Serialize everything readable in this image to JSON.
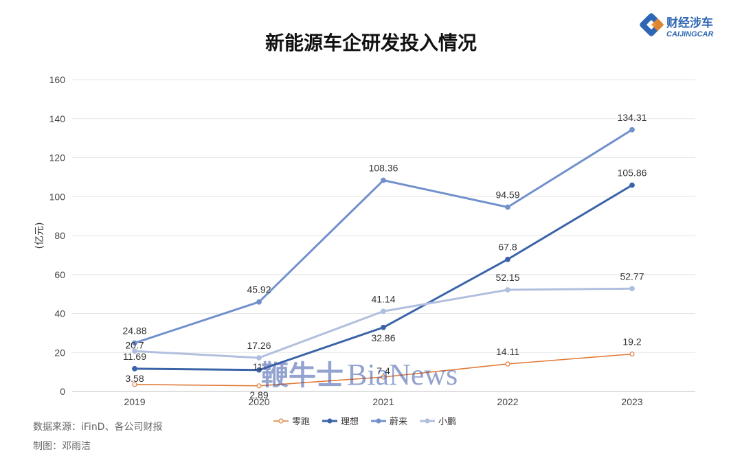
{
  "logo": {
    "name_cn": "财经涉车",
    "name_en": "CAIJINGCAR"
  },
  "footer": {
    "source": "数据来源：iFinD、各公司财报",
    "author": "制图：邓雨洁"
  },
  "watermark": {
    "cn": "鞭牛士",
    "en": "BiaNews"
  },
  "chart_data": {
    "type": "line",
    "title": "新能源车企研发投入情况",
    "ylabel": "(亿元)",
    "xlabel": "",
    "categories": [
      "2019",
      "2020",
      "2021",
      "2022",
      "2023"
    ],
    "ylim": [
      0,
      160
    ],
    "yticks": [
      0,
      20,
      40,
      60,
      80,
      100,
      120,
      140,
      160
    ],
    "grid": true,
    "legend_position": "bottom",
    "series": [
      {
        "name": "零跑",
        "values": [
          3.58,
          2.89,
          7.4,
          14.11,
          19.2
        ],
        "color": "#e07b39",
        "marker": "hollow"
      },
      {
        "name": "理想",
        "values": [
          11.69,
          11,
          32.86,
          67.8,
          105.86
        ],
        "color": "#3b63a8",
        "marker": "filled"
      },
      {
        "name": "蔚来",
        "values": [
          24.88,
          45.92,
          108.36,
          94.59,
          134.31
        ],
        "color": "#7190cc",
        "marker": "filled"
      },
      {
        "name": "小鹏",
        "values": [
          20.7,
          17.26,
          41.14,
          52.15,
          52.77
        ],
        "color": "#b1bfdf",
        "marker": "filled"
      }
    ]
  }
}
